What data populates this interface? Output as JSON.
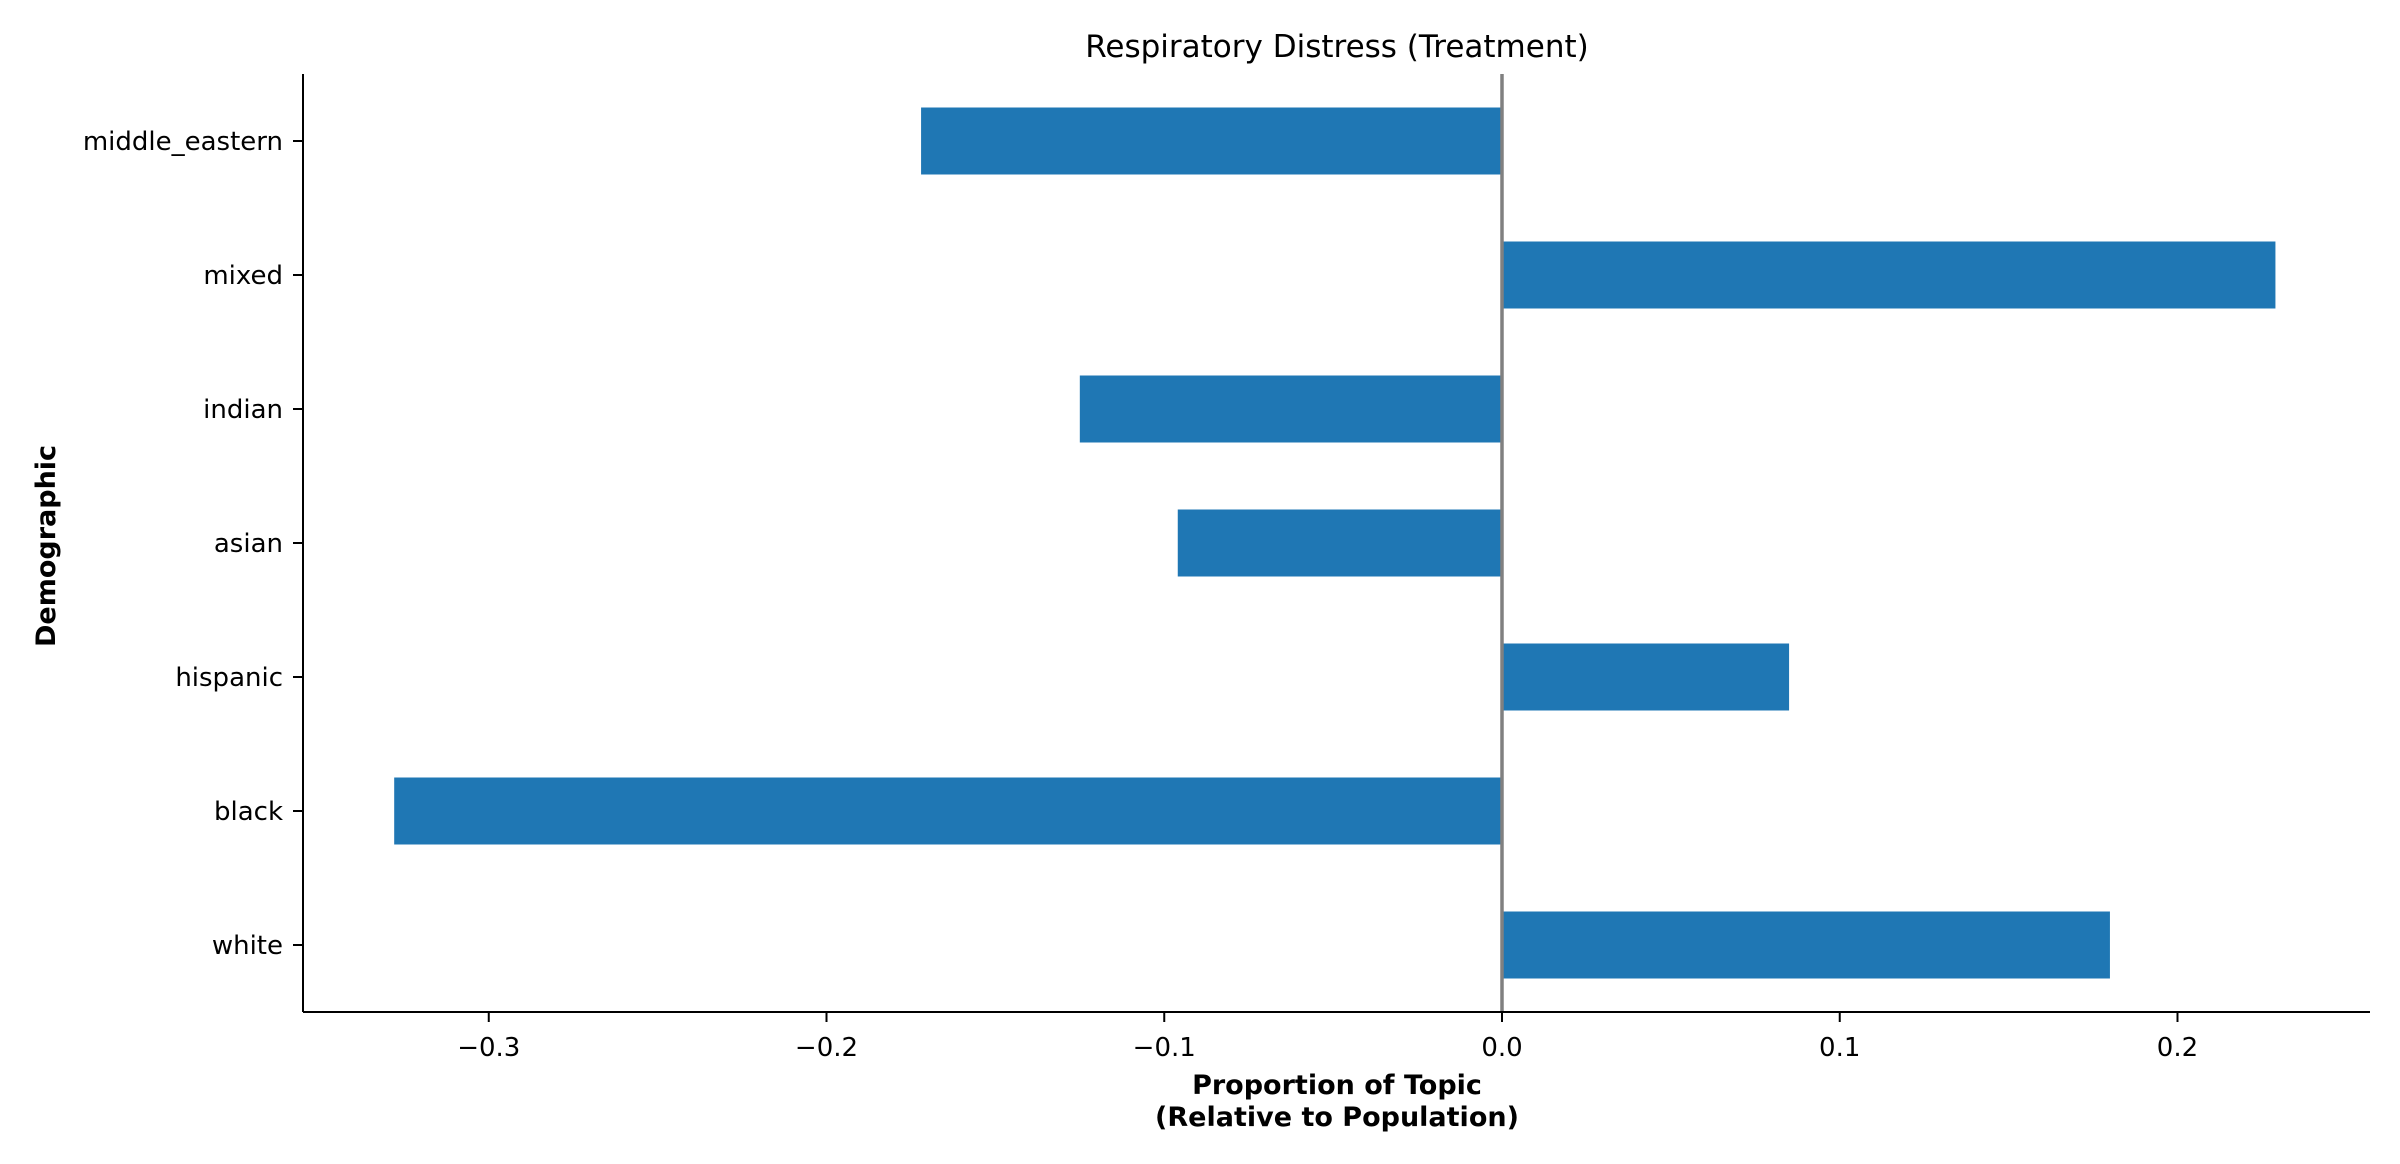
{
  "chart_data": {
    "type": "bar",
    "orientation": "horizontal",
    "title": "Respiratory Distress (Treatment)",
    "xlabel_line1": "Proportion of Topic",
    "xlabel_line2": "(Relative to Population)",
    "ylabel": "Demographic",
    "categories": [
      "white",
      "black",
      "hispanic",
      "asian",
      "indian",
      "mixed",
      "middle_eastern"
    ],
    "values": [
      0.18,
      -0.328,
      0.085,
      -0.096,
      -0.125,
      0.229,
      -0.172
    ],
    "xlim": [
      -0.355,
      0.257
    ],
    "xticks": [
      -0.3,
      -0.2,
      -0.1,
      0.0,
      0.1,
      0.2
    ],
    "xtick_labels": [
      "−0.3",
      "−0.2",
      "−0.1",
      "0.0",
      "0.1",
      "0.2"
    ],
    "grid": false,
    "bar_color": "#1f77b4",
    "zero_line_color": "#808080",
    "axis_color": "#000000"
  }
}
